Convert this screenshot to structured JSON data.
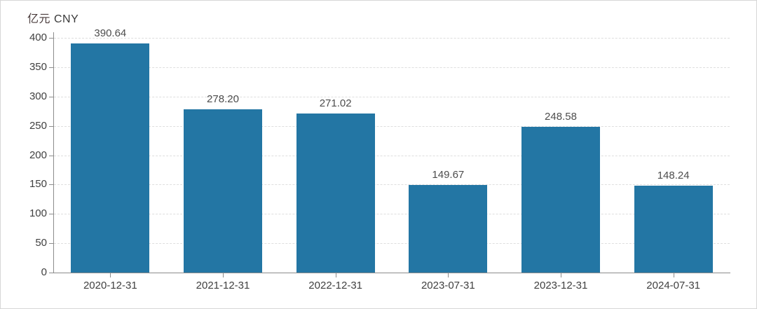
{
  "header": {
    "unit_cn": "亿元",
    "unit_en": "CNY"
  },
  "chart_data": {
    "type": "bar",
    "title": "",
    "xlabel": "",
    "ylabel": "亿元 CNY",
    "categories": [
      "2020-12-31",
      "2021-12-31",
      "2022-12-31",
      "2023-07-31",
      "2023-12-31",
      "2024-07-31"
    ],
    "values": [
      390.64,
      278.2,
      271.02,
      149.67,
      248.58,
      148.24
    ],
    "value_labels": [
      "390.64",
      "278.20",
      "271.02",
      "149.67",
      "248.58",
      "148.24"
    ],
    "ylim": [
      0,
      400
    ],
    "yticks": [
      0,
      50,
      100,
      150,
      200,
      250,
      300,
      350,
      400
    ],
    "grid": "horizontal-dashed",
    "legend": "none",
    "bar_color": "#2376a4",
    "axis_color": "#8c8c8c",
    "grid_color": "#dedede",
    "label_color": "#4d4d4d"
  }
}
